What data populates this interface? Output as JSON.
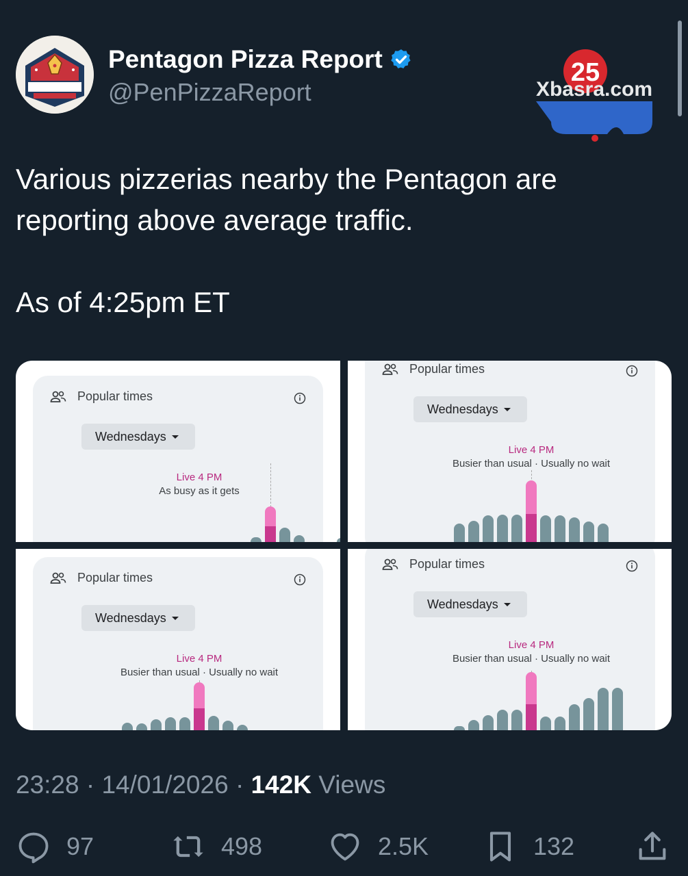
{
  "account": {
    "display_name": "Pentagon Pizza Report",
    "handle": "@PenPizzaReport",
    "avatar_text": "PENTAGON",
    "avatar_subtext": "PIZZA REPORT",
    "avatar_small": "THE"
  },
  "watermark": {
    "number": "25",
    "latin": "Xbasra.com"
  },
  "tweet": {
    "line1": "Various pizzerias nearby the Pentagon are",
    "line2": "reporting above average traffic.",
    "line3": "As of 4:25pm ET"
  },
  "panels": [
    {
      "title": "Popular times",
      "day": "Wednesdays",
      "live": "Live 4 PM",
      "status": "As busy as it gets",
      "bars": [
        0,
        0,
        0,
        0,
        0,
        0.13,
        1.0,
        0.4,
        0.2,
        0,
        0,
        0.05,
        0.1,
        0.25
      ],
      "live_index": 6
    },
    {
      "title": "Popular times",
      "day": "Wednesdays",
      "live": "Live 4 PM",
      "status": "Busier than usual · Usually no wait",
      "bars": [
        0.3,
        0.35,
        0.43,
        0.45,
        0.45,
        1.0,
        0.43,
        0.43,
        0.4,
        0.33,
        0.3
      ],
      "live_index": 5
    },
    {
      "title": "Popular times",
      "day": "Wednesdays",
      "live": "Live 4 PM",
      "status": "Busier than usual · Usually no wait",
      "bars": [
        0.16,
        0.14,
        0.23,
        0.27,
        0.27,
        1.0,
        0.3,
        0.2,
        0.12
      ],
      "live_index": 5
    },
    {
      "title": "Popular times",
      "day": "Wednesdays",
      "live": "Live 4 PM",
      "status": "Busier than usual · Usually no wait",
      "bars": [
        0.05,
        0.18,
        0.26,
        0.35,
        0.35,
        1.0,
        0.23,
        0.23,
        0.45,
        0.55,
        0.73,
        0.73
      ],
      "live_index": 5
    }
  ],
  "meta": {
    "time": "23:28",
    "date": "14/01/2026",
    "views_count": "142K",
    "views_label": "Views",
    "sep": "·"
  },
  "actions": {
    "replies": "97",
    "reposts": "498",
    "likes": "2.5K",
    "bookmarks": "132"
  },
  "colors": {
    "background": "#15202b",
    "verified": "#1d9bf0",
    "live": "#f079bf",
    "bar": "#77949b"
  }
}
